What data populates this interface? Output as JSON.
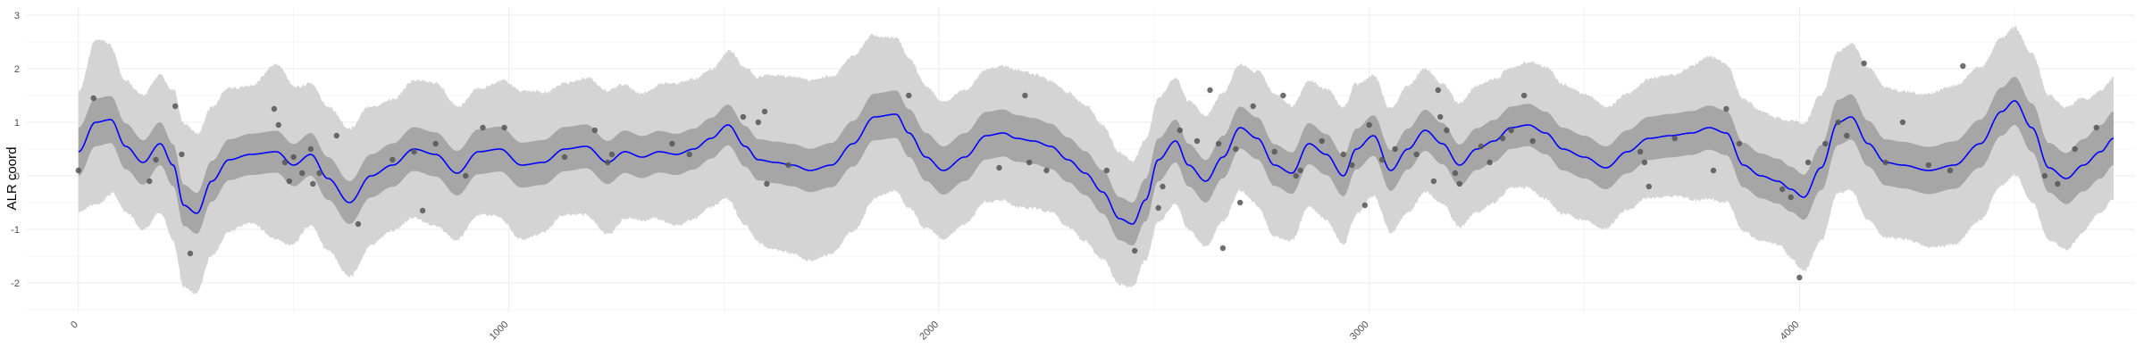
{
  "chart_data": {
    "type": "line",
    "title": "",
    "xlabel": "",
    "ylabel": "ALR coord",
    "xlim": [
      -120,
      4780
    ],
    "ylim": [
      -2.55,
      3.15
    ],
    "x_ticks": [
      0,
      1000,
      2000,
      3000,
      4000
    ],
    "y_ticks": [
      -2,
      -1,
      0,
      1,
      2,
      3
    ],
    "grid": true,
    "legend": "none",
    "colors": {
      "mean_line": "#0000ff",
      "inner_band": "#a6a6a6",
      "outer_band": "#d4d4d4",
      "points": "#555555",
      "grid": "#ebebeb"
    },
    "mean": {
      "x": [
        0,
        40,
        75,
        110,
        150,
        190,
        220,
        245,
        275,
        310,
        350,
        400,
        460,
        500,
        540,
        580,
        630,
        680,
        730,
        780,
        830,
        880,
        930,
        980,
        1030,
        1080,
        1130,
        1180,
        1230,
        1270,
        1310,
        1350,
        1390,
        1430,
        1470,
        1510,
        1550,
        1580,
        1620,
        1660,
        1700,
        1750,
        1800,
        1850,
        1900,
        1930,
        1970,
        2010,
        2060,
        2110,
        2150,
        2180,
        2220,
        2260,
        2300,
        2340,
        2380,
        2420,
        2450,
        2480,
        2510,
        2550,
        2580,
        2620,
        2660,
        2700,
        2740,
        2780,
        2820,
        2860,
        2900,
        2940,
        2970,
        3010,
        3050,
        3090,
        3130,
        3170,
        3210,
        3250,
        3290,
        3330,
        3370,
        3410,
        3450,
        3500,
        3550,
        3600,
        3650,
        3700,
        3750,
        3790,
        3830,
        3870,
        3910,
        3950,
        3980,
        4010,
        4050,
        4090,
        4120,
        4160,
        4200,
        4240,
        4300,
        4360,
        4420,
        4470,
        4500,
        4540,
        4580,
        4620,
        4660,
        4700,
        4730
      ],
      "y": [
        0.45,
        1.0,
        1.05,
        0.55,
        0.25,
        0.6,
        0.2,
        -0.55,
        -0.7,
        -0.1,
        0.3,
        0.4,
        0.45,
        0.2,
        0.4,
        -0.05,
        -0.5,
        0.0,
        0.2,
        0.5,
        0.4,
        0.05,
        0.45,
        0.5,
        0.2,
        0.25,
        0.5,
        0.55,
        0.25,
        0.45,
        0.35,
        0.45,
        0.4,
        0.5,
        0.7,
        0.95,
        0.55,
        0.3,
        0.25,
        0.2,
        0.1,
        0.2,
        0.6,
        1.1,
        1.15,
        0.8,
        0.35,
        0.1,
        0.35,
        0.75,
        0.8,
        0.7,
        0.65,
        0.55,
        0.3,
        0.05,
        -0.3,
        -0.8,
        -0.9,
        -0.45,
        0.3,
        0.65,
        0.2,
        -0.1,
        0.35,
        0.9,
        0.7,
        0.2,
        0.05,
        0.6,
        0.4,
        0.0,
        0.5,
        0.75,
        0.1,
        0.5,
        0.85,
        0.6,
        0.2,
        0.5,
        0.65,
        0.9,
        0.95,
        0.8,
        0.5,
        0.35,
        0.15,
        0.45,
        0.7,
        0.75,
        0.8,
        0.9,
        0.8,
        0.2,
        0.0,
        -0.1,
        -0.25,
        -0.4,
        0.15,
        1.0,
        1.1,
        0.6,
        0.25,
        0.2,
        0.1,
        0.2,
        0.6,
        1.2,
        1.4,
        0.9,
        0.15,
        -0.05,
        0.2,
        0.45,
        0.7
      ]
    },
    "inner_band_halfwidth": {
      "x": [
        0,
        300,
        600,
        1000,
        1500,
        2000,
        2500,
        3000,
        3500,
        4000,
        4500,
        4730
      ],
      "y": [
        0.45,
        0.38,
        0.4,
        0.42,
        0.38,
        0.45,
        0.4,
        0.38,
        0.4,
        0.42,
        0.45,
        0.5
      ]
    },
    "outer_band_halfwidth": {
      "x": [
        0,
        40,
        110,
        190,
        250,
        320,
        400,
        460,
        540,
        630,
        730,
        830,
        930,
        1030,
        1130,
        1230,
        1310,
        1390,
        1470,
        1550,
        1620,
        1700,
        1800,
        1900,
        2010,
        2110,
        2180,
        2260,
        2340,
        2420,
        2480,
        2550,
        2620,
        2700,
        2780,
        2860,
        2940,
        3010,
        3090,
        3170,
        3250,
        3330,
        3410,
        3500,
        3600,
        3700,
        3790,
        3870,
        3950,
        4010,
        4090,
        4160,
        4240,
        4360,
        4470,
        4540,
        4620,
        4700,
        4730
      ],
      "y": [
        1.1,
        1.5,
        1.2,
        1.25,
        1.5,
        1.35,
        1.25,
        1.6,
        1.3,
        1.35,
        1.2,
        1.3,
        1.15,
        1.35,
        1.2,
        1.3,
        1.15,
        1.3,
        1.25,
        1.45,
        1.6,
        1.65,
        1.6,
        1.4,
        1.25,
        1.2,
        1.25,
        1.2,
        1.25,
        1.2,
        1.1,
        1.15,
        1.2,
        1.15,
        1.3,
        1.15,
        1.25,
        1.1,
        1.15,
        1.1,
        1.15,
        1.1,
        1.2,
        1.15,
        1.05,
        1.1,
        1.3,
        1.2,
        1.15,
        1.35,
        1.3,
        1.4,
        1.35,
        1.45,
        1.35,
        1.35,
        1.3,
        1.1,
        1.1
      ]
    },
    "observations": {
      "x": [
        0,
        35,
        165,
        180,
        225,
        240,
        260,
        455,
        465,
        480,
        490,
        500,
        520,
        540,
        545,
        560,
        600,
        650,
        730,
        780,
        800,
        830,
        900,
        940,
        990,
        1130,
        1200,
        1230,
        1240,
        1380,
        1420,
        1545,
        1580,
        1595,
        1600,
        1650,
        1930,
        2140,
        2200,
        2210,
        2250,
        2390,
        2455,
        2510,
        2520,
        2560,
        2600,
        2630,
        2650,
        2660,
        2690,
        2700,
        2730,
        2780,
        2800,
        2830,
        2840,
        2890,
        2940,
        2960,
        2990,
        3000,
        3030,
        3060,
        3110,
        3150,
        3160,
        3165,
        3180,
        3200,
        3210,
        3260,
        3280,
        3310,
        3330,
        3360,
        3380,
        3630,
        3640,
        3650,
        3710,
        3800,
        3830,
        3860,
        3960,
        3980,
        4000,
        4020,
        4060,
        4090,
        4110,
        4150,
        4200,
        4240,
        4300,
        4350,
        4380,
        4570,
        4600,
        4640,
        4690
      ],
      "y": [
        0.1,
        1.45,
        -0.1,
        0.3,
        1.3,
        0.4,
        -1.45,
        1.25,
        0.95,
        0.25,
        -0.1,
        0.35,
        0.05,
        0.5,
        -0.15,
        0.05,
        0.75,
        -0.9,
        0.3,
        0.45,
        -0.65,
        0.6,
        0.0,
        0.9,
        0.9,
        0.35,
        0.85,
        0.25,
        0.4,
        0.6,
        0.4,
        1.1,
        1.0,
        1.2,
        -0.15,
        0.2,
        1.5,
        0.15,
        1.5,
        0.25,
        0.1,
        0.1,
        -1.4,
        -0.6,
        -0.2,
        0.85,
        0.65,
        1.6,
        0.6,
        -1.35,
        0.5,
        -0.5,
        1.3,
        0.45,
        1.5,
        0.0,
        0.1,
        0.65,
        0.4,
        0.2,
        -0.55,
        0.95,
        0.3,
        0.5,
        0.4,
        -0.1,
        1.6,
        1.1,
        0.85,
        0.05,
        -0.15,
        0.55,
        0.25,
        0.7,
        0.85,
        1.5,
        0.65,
        0.45,
        0.25,
        -0.2,
        0.7,
        0.1,
        1.25,
        0.6,
        -0.25,
        -0.4,
        -1.9,
        0.25,
        0.6,
        1.0,
        0.75,
        2.1,
        0.25,
        1.0,
        0.2,
        0.1,
        2.05,
        0.0,
        -0.15,
        0.5,
        0.9
      ]
    }
  }
}
